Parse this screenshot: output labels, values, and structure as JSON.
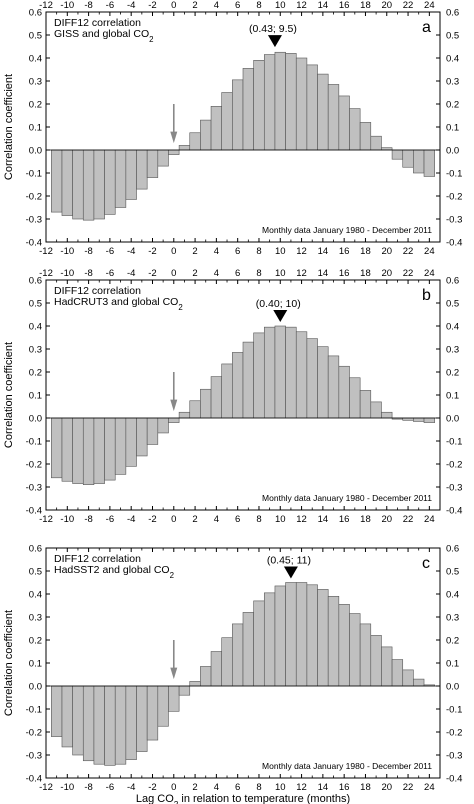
{
  "chart_data": [
    {
      "type": "bar",
      "panel_letter": "a",
      "title_lines": [
        "DIFF12 correlation",
        "GISS and global CO2"
      ],
      "peak_label": "(0.43; 9.5)",
      "peak_x": 9.5,
      "peak_value": 0.43,
      "note": "Monthly data January 1980 - December 2011",
      "ylabel": "Correlation coefficient",
      "xlabel": "",
      "xlim": [
        -12,
        25
      ],
      "ylim": [
        -0.4,
        0.6
      ],
      "x_ticks": [
        "-12",
        "-10",
        "-8",
        "-6",
        "-4",
        "-2",
        "0",
        "2",
        "4",
        "6",
        "8",
        "10",
        "12",
        "14",
        "16",
        "18",
        "20",
        "22",
        "24"
      ],
      "y_ticks": [
        "-0.4",
        "-0.3",
        "-0.2",
        "-0.1",
        "0.0",
        "0.1",
        "0.2",
        "0.3",
        "0.4",
        "0.5",
        "0.6"
      ],
      "marker_x": 0,
      "bar_color": "#c0c0c0",
      "x": [
        -11,
        -10,
        -9,
        -8,
        -7,
        -6,
        -5,
        -4,
        -3,
        -2,
        -1,
        0,
        1,
        2,
        3,
        4,
        5,
        6,
        7,
        8,
        9,
        10,
        11,
        12,
        13,
        14,
        15,
        16,
        17,
        18,
        19,
        20,
        21,
        22,
        23,
        24
      ],
      "values": [
        -0.27,
        -0.285,
        -0.3,
        -0.305,
        -0.3,
        -0.28,
        -0.25,
        -0.215,
        -0.17,
        -0.12,
        -0.07,
        -0.02,
        0.02,
        0.075,
        0.13,
        0.19,
        0.25,
        0.305,
        0.355,
        0.39,
        0.415,
        0.425,
        0.42,
        0.4,
        0.37,
        0.33,
        0.285,
        0.235,
        0.18,
        0.12,
        0.06,
        0.01,
        -0.04,
        -0.075,
        -0.1,
        -0.115
      ]
    },
    {
      "type": "bar",
      "panel_letter": "b",
      "title_lines": [
        "DIFF12 correlation",
        "HadCRUT3 and global CO2"
      ],
      "peak_label": "(0.40; 10)",
      "peak_x": 10,
      "peak_value": 0.4,
      "note": "Monthly data January 1980 - December 2011",
      "ylabel": "Correlation coefficient",
      "xlabel": "",
      "xlim": [
        -12,
        25
      ],
      "ylim": [
        -0.4,
        0.6
      ],
      "x_ticks": [
        "-12",
        "-10",
        "-8",
        "-6",
        "-4",
        "-2",
        "0",
        "2",
        "4",
        "6",
        "8",
        "10",
        "12",
        "14",
        "16",
        "18",
        "20",
        "22",
        "24"
      ],
      "y_ticks": [
        "-0.4",
        "-0.3",
        "-0.2",
        "-0.1",
        "0.0",
        "0.1",
        "0.2",
        "0.3",
        "0.4",
        "0.5",
        "0.6"
      ],
      "marker_x": 0,
      "bar_color": "#c0c0c0",
      "x": [
        -11,
        -10,
        -9,
        -8,
        -7,
        -6,
        -5,
        -4,
        -3,
        -2,
        -1,
        0,
        1,
        2,
        3,
        4,
        5,
        6,
        7,
        8,
        9,
        10,
        11,
        12,
        13,
        14,
        15,
        16,
        17,
        18,
        19,
        20,
        21,
        22,
        23,
        24
      ],
      "values": [
        -0.26,
        -0.275,
        -0.285,
        -0.29,
        -0.285,
        -0.27,
        -0.245,
        -0.21,
        -0.165,
        -0.115,
        -0.065,
        -0.02,
        0.025,
        0.075,
        0.125,
        0.18,
        0.235,
        0.285,
        0.33,
        0.37,
        0.395,
        0.4,
        0.395,
        0.375,
        0.345,
        0.31,
        0.27,
        0.225,
        0.175,
        0.12,
        0.07,
        0.025,
        -0.005,
        -0.01,
        -0.015,
        -0.02
      ]
    },
    {
      "type": "bar",
      "panel_letter": "c",
      "title_lines": [
        "DIFF12 correlation",
        "HadSST2 and global CO2"
      ],
      "peak_label": "(0.45; 11)",
      "peak_x": 11,
      "peak_value": 0.45,
      "note": "Monthly data January 1980 - December 2011",
      "ylabel": "Correlation coefficient",
      "xlabel": "Lag CO2 in relation to temperature (months)",
      "xlim": [
        -12,
        25
      ],
      "ylim": [
        -0.4,
        0.6
      ],
      "x_ticks": [
        "-12",
        "-10",
        "-8",
        "-6",
        "-4",
        "-2",
        "0",
        "2",
        "4",
        "6",
        "8",
        "10",
        "12",
        "14",
        "16",
        "18",
        "20",
        "22",
        "24"
      ],
      "y_ticks": [
        "-0.4",
        "-0.3",
        "-0.2",
        "-0.1",
        "0.0",
        "0.1",
        "0.2",
        "0.3",
        "0.4",
        "0.5",
        "0.6"
      ],
      "marker_x": 0,
      "bar_color": "#c0c0c0",
      "x": [
        -11,
        -10,
        -9,
        -8,
        -7,
        -6,
        -5,
        -4,
        -3,
        -2,
        -1,
        0,
        1,
        2,
        3,
        4,
        5,
        6,
        7,
        8,
        9,
        10,
        11,
        12,
        13,
        14,
        15,
        16,
        17,
        18,
        19,
        20,
        21,
        22,
        23,
        24
      ],
      "values": [
        -0.22,
        -0.265,
        -0.3,
        -0.325,
        -0.34,
        -0.345,
        -0.34,
        -0.32,
        -0.285,
        -0.235,
        -0.175,
        -0.11,
        -0.04,
        0.02,
        0.085,
        0.15,
        0.21,
        0.27,
        0.32,
        0.37,
        0.405,
        0.435,
        0.45,
        0.45,
        0.44,
        0.42,
        0.39,
        0.355,
        0.315,
        0.27,
        0.22,
        0.17,
        0.115,
        0.07,
        0.03,
        0.005
      ]
    }
  ]
}
